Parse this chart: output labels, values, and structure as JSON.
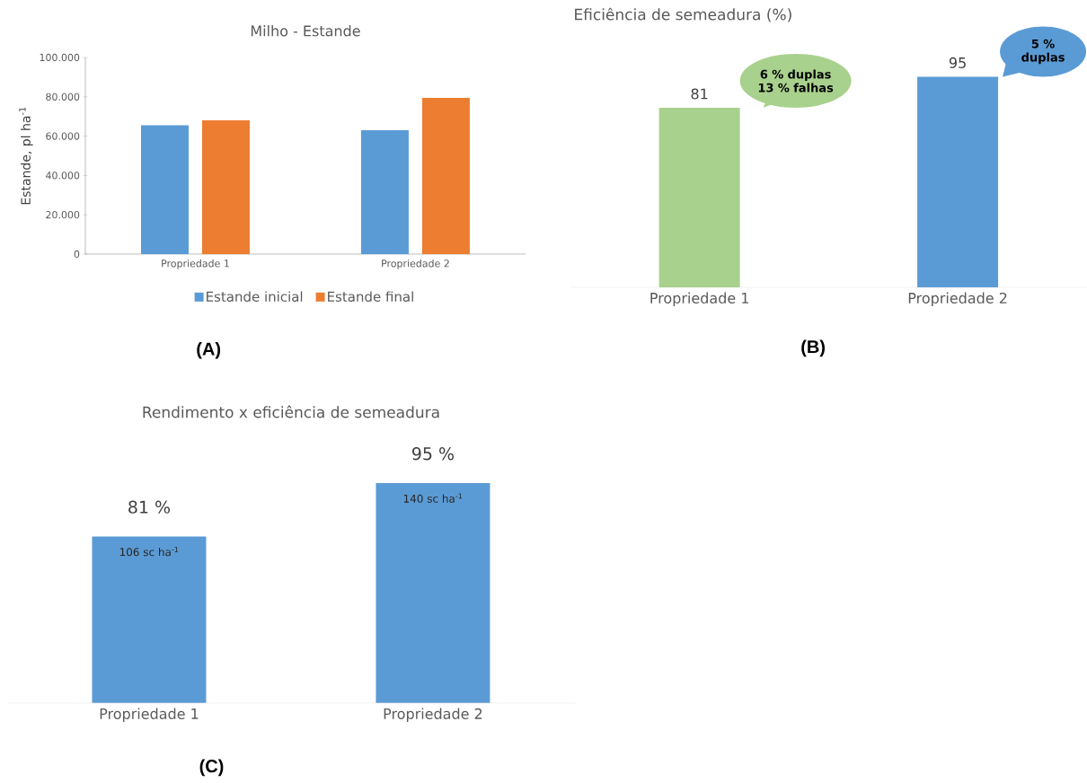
{
  "chart_data": [
    {
      "type": "bar",
      "title": "Milho - Estande",
      "ylabel": "Estande, pl ha$^{-1}$",
      "categories": [
        "Propriedade 1",
        "Propriedade 2"
      ],
      "series": [
        {
          "name": "Estande inicial",
          "color": "#5b9bd5",
          "values": [
            65500,
            63000
          ]
        },
        {
          "name": "Estande final",
          "color": "#ed7d31",
          "values": [
            68000,
            79500
          ]
        }
      ],
      "ylim": [
        0,
        100000
      ],
      "yticks": [
        {
          "value": 0,
          "label": "0"
        },
        {
          "value": 20000,
          "label": "20.000"
        },
        {
          "value": 40000,
          "label": "40.000"
        },
        {
          "value": 60000,
          "label": "60.000"
        },
        {
          "value": 80000,
          "label": "80.000"
        },
        {
          "value": 100000,
          "label": "100.000"
        }
      ],
      "legend": "bottom",
      "grid": false,
      "annotations": [
        "(A)"
      ]
    },
    {
      "type": "bar",
      "title": "Eficiência de semeadura (%)",
      "categories": [
        "Propriedade 1",
        "Propriedade 2"
      ],
      "values": [
        81,
        95
      ],
      "colors": [
        "#a9d18e",
        "#5b9bd5"
      ],
      "data_labels": true,
      "annotations": [
        "6 % duplas 13 % falhas",
        "5 % duplas",
        "(B)"
      ]
    },
    {
      "type": "bar",
      "title": "Rendimento x eficiência de semeadura",
      "categories": [
        "Propriedade 1",
        "Propriedade 2"
      ],
      "values": [
        106,
        140
      ],
      "color": "#5b9bd5",
      "value_labels": [
        "106 sc ha$^{-1}$",
        "140 sc ha$^{-1}$"
      ],
      "annotations": [
        {
          "text": "81 %",
          "x": "Propriedade 1",
          "y": 106
        },
        {
          "text": "95 %",
          "x": "Propriedade 2",
          "y": 140
        },
        "(C)"
      ]
    }
  ]
}
